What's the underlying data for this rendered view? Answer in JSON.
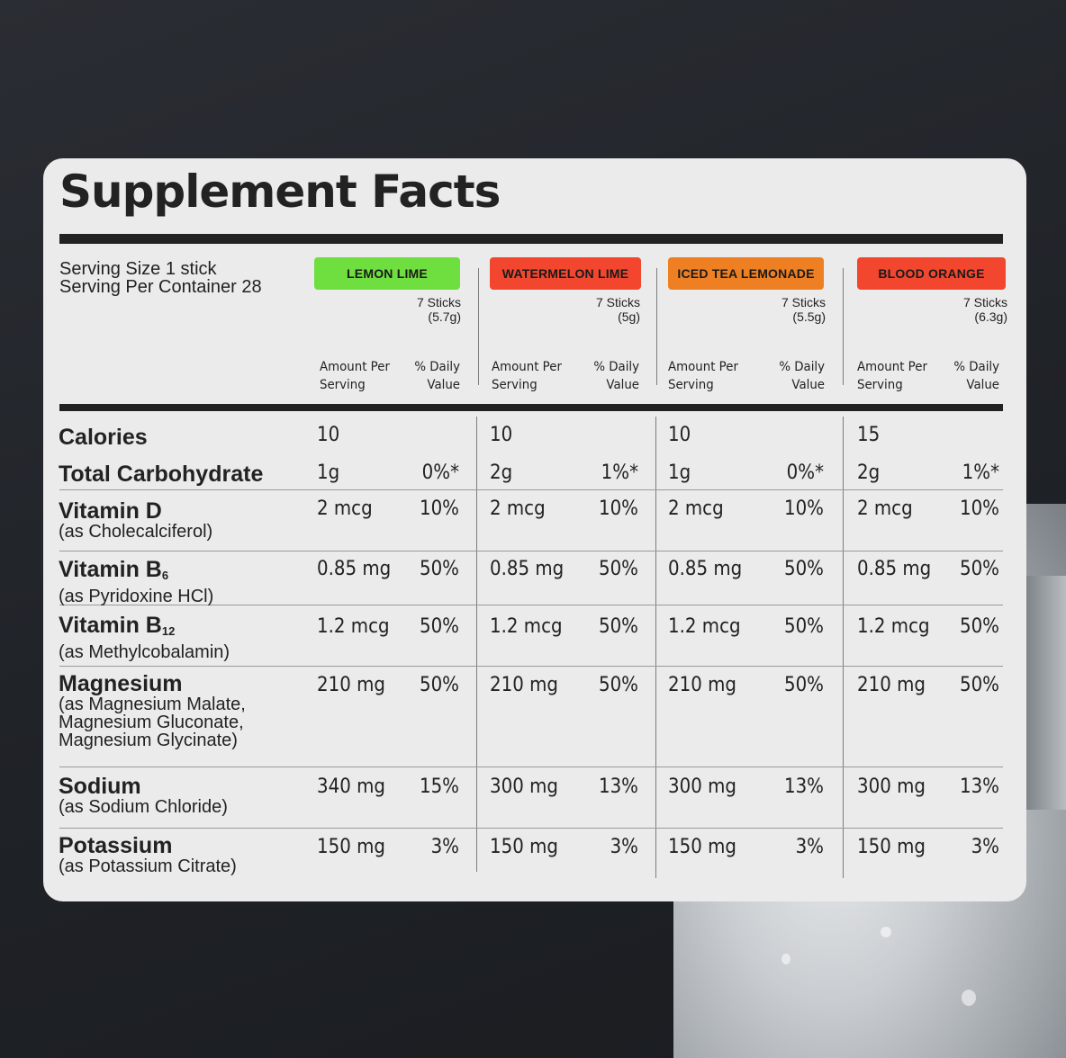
{
  "title": "Supplement Facts",
  "serving": {
    "size": "Serving Size 1 stick",
    "per_container": "Serving Per Container 28"
  },
  "column_headers": {
    "amount": [
      "Amount Per",
      "Serving"
    ],
    "dv": [
      "% Daily",
      "Value"
    ]
  },
  "flavors": [
    {
      "name": "LEMON LIME",
      "color": "#6fde3f",
      "sticks": "7 Sticks",
      "weight": "(5.7g)"
    },
    {
      "name": "WATERMELON LIME",
      "color": "#f2472e",
      "sticks": "7 Sticks",
      "weight": "(5g)"
    },
    {
      "name": "ICED TEA LEMONADE",
      "color": "#ee7f22",
      "sticks": "7 Sticks",
      "weight": "(5.5g)"
    },
    {
      "name": "BLOOD ORANGE",
      "color": "#f2472e",
      "sticks": "7 Sticks",
      "weight": "(6.3g)"
    }
  ],
  "rows": [
    {
      "name": "Calories",
      "sub": "",
      "values": [
        [
          "10",
          ""
        ],
        [
          "10",
          ""
        ],
        [
          "10",
          ""
        ],
        [
          "15",
          ""
        ]
      ]
    },
    {
      "name": "Total Carbohydrate",
      "sub": "",
      "values": [
        [
          "1g",
          "0%*"
        ],
        [
          "2g",
          "1%*"
        ],
        [
          "1g",
          "0%*"
        ],
        [
          "2g",
          "1%*"
        ]
      ]
    },
    {
      "name": "Vitamin D",
      "sub": "(as Cholecalciferol)",
      "values": [
        [
          "2 mcg",
          "10%"
        ],
        [
          "2 mcg",
          "10%"
        ],
        [
          "2 mcg",
          "10%"
        ],
        [
          "2 mcg",
          "10%"
        ]
      ]
    },
    {
      "name": "Vitamin B",
      "subscript": "6",
      "sub": "(as Pyridoxine HCl)",
      "values": [
        [
          "0.85 mg",
          "50%"
        ],
        [
          "0.85 mg",
          "50%"
        ],
        [
          "0.85 mg",
          "50%"
        ],
        [
          "0.85 mg",
          "50%"
        ]
      ]
    },
    {
      "name": "Vitamin B",
      "subscript": "12",
      "sub": "(as Methylcobalamin)",
      "values": [
        [
          "1.2 mcg",
          "50%"
        ],
        [
          "1.2 mcg",
          "50%"
        ],
        [
          "1.2 mcg",
          "50%"
        ],
        [
          "1.2 mcg",
          "50%"
        ]
      ]
    },
    {
      "name": "Magnesium",
      "sub": [
        "(as Magnesium Malate,",
        "Magnesium Gluconate,",
        "Magnesium Glycinate)"
      ],
      "values": [
        [
          "210 mg",
          "50%"
        ],
        [
          "210 mg",
          "50%"
        ],
        [
          "210 mg",
          "50%"
        ],
        [
          "210 mg",
          "50%"
        ]
      ]
    },
    {
      "name": "Sodium",
      "sub": "(as Sodium Chloride)",
      "values": [
        [
          "340 mg",
          "15%"
        ],
        [
          "300 mg",
          "13%"
        ],
        [
          "300 mg",
          "13%"
        ],
        [
          "300 mg",
          "13%"
        ]
      ]
    },
    {
      "name": "Potassium",
      "sub": "(as Potassium Citrate)",
      "values": [
        [
          "150 mg",
          "3%"
        ],
        [
          "150 mg",
          "3%"
        ],
        [
          "150 mg",
          "3%"
        ],
        [
          "150 mg",
          "3%"
        ]
      ]
    }
  ]
}
